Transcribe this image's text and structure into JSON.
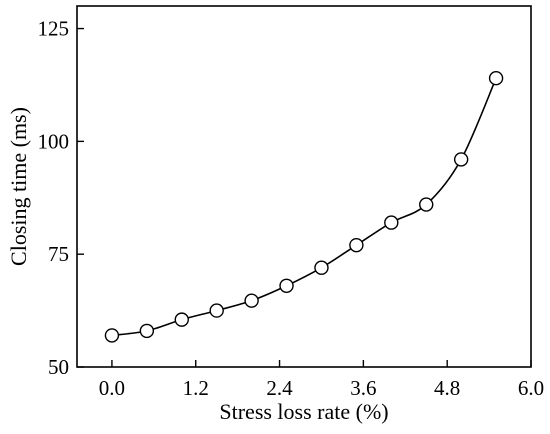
{
  "chart_data": {
    "type": "line",
    "title": "",
    "xlabel": "Stress loss rate (%)",
    "ylabel": "Closing time (ms)",
    "xlim": [
      -0.5,
      6.0
    ],
    "ylim": [
      50,
      130
    ],
    "xticks": [
      0.0,
      1.2,
      2.4,
      3.6,
      4.8,
      6.0
    ],
    "xtick_labels": [
      "0.0",
      "1.2",
      "2.4",
      "3.6",
      "4.8",
      "6.0"
    ],
    "yticks": [
      50,
      75,
      100,
      125
    ],
    "ytick_labels": [
      "50",
      "75",
      "100",
      "125"
    ],
    "grid": false,
    "legend": "none",
    "marker": "open-circle",
    "series": [
      {
        "x": [
          0.0,
          0.5,
          1.0,
          1.5,
          2.0,
          2.5,
          3.0,
          3.5,
          4.0,
          4.5,
          5.0,
          5.5
        ],
        "y": [
          57.0,
          58.0,
          60.5,
          62.5,
          64.7,
          68.0,
          72.0,
          77.0,
          82.0,
          86.0,
          96.0,
          114.0
        ]
      }
    ]
  }
}
